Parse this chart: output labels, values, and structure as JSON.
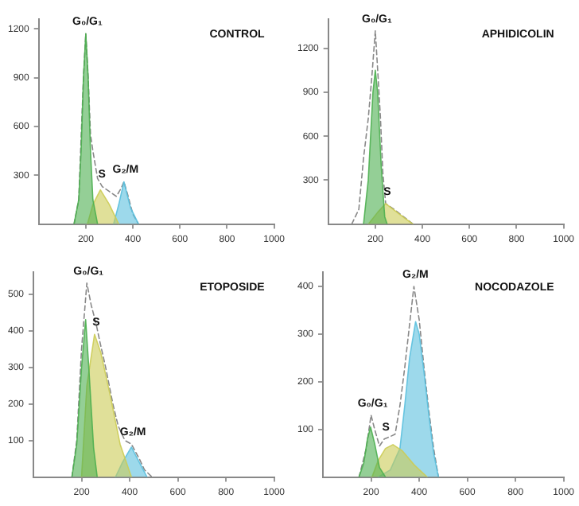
{
  "chart_data": [
    {
      "type": "area",
      "title": "CONTROL",
      "xlim": [
        0,
        1000
      ],
      "xticks": [
        200,
        400,
        600,
        800,
        1000
      ],
      "ylim": [
        0,
        1260
      ],
      "yticks": [
        300,
        600,
        900,
        1200
      ],
      "legend": false,
      "grid": false,
      "series": [
        {
          "type": "area",
          "color": "#4caf50",
          "x": [
            150,
            170,
            180,
            190,
            200,
            210,
            220,
            230,
            250
          ],
          "values": [
            0,
            150,
            450,
            900,
            1170,
            900,
            450,
            150,
            0
          ]
        },
        {
          "type": "area",
          "color": "#cccc55",
          "x": [
            207,
            230,
            262,
            300,
            340
          ],
          "values": [
            0,
            120,
            210,
            120,
            0
          ]
        },
        {
          "type": "area",
          "color": "#5bc0de",
          "x": [
            318,
            340,
            362,
            390,
            424
          ],
          "values": [
            0,
            120,
            260,
            100,
            0
          ]
        },
        {
          "type": "line",
          "line_style": "dashed",
          "color": "#888888",
          "x": [
            150,
            170,
            190,
            200,
            210,
            220,
            230,
            250,
            270,
            300,
            330,
            350,
            362,
            380,
            400,
            424
          ],
          "values": [
            0,
            150,
            900,
            1170,
            900,
            550,
            450,
            280,
            230,
            200,
            170,
            220,
            260,
            170,
            60,
            0
          ]
        }
      ],
      "annotations": [
        {
          "text": "G₀/G₁",
          "x": 200,
          "y": 1170
        },
        {
          "text": "S",
          "x": 262,
          "y": 230
        },
        {
          "text": "G₂/M",
          "x": 362,
          "y": 260
        }
      ]
    },
    {
      "type": "area",
      "title": "APHIDICOLIN",
      "xlim": [
        0,
        1000
      ],
      "xticks": [
        200,
        400,
        600,
        800,
        1000
      ],
      "ylim": [
        0,
        1400
      ],
      "yticks": [
        300,
        600,
        900,
        1200
      ],
      "legend": false,
      "grid": false,
      "series": [
        {
          "type": "area",
          "color": "#4caf50",
          "x": [
            150,
            170,
            190,
            200,
            210,
            225,
            240,
            250
          ],
          "values": [
            0,
            300,
            900,
            1050,
            900,
            400,
            50,
            0
          ]
        },
        {
          "type": "area",
          "color": "#cccc55",
          "x": [
            171,
            210,
            244,
            300,
            360
          ],
          "values": [
            0,
            80,
            140,
            70,
            0
          ]
        },
        {
          "type": "line",
          "line_style": "dashed",
          "color": "#888888",
          "x": [
            100,
            130,
            150,
            170,
            185,
            200,
            212,
            222,
            232,
            244,
            280,
            320,
            360
          ],
          "values": [
            0,
            100,
            450,
            720,
            1000,
            1320,
            1000,
            720,
            350,
            140,
            100,
            50,
            0
          ]
        }
      ],
      "annotations": [
        {
          "text": "G₀/G₁",
          "x": 200,
          "y": 1320
        },
        {
          "text": "S",
          "x": 244,
          "y": 140
        }
      ]
    },
    {
      "type": "area",
      "title": "ETOPOSIDE",
      "xlim": [
        0,
        1000
      ],
      "xticks": [
        200,
        400,
        600,
        800,
        1000
      ],
      "ylim": [
        0,
        560
      ],
      "yticks": [
        100,
        200,
        300,
        400,
        500
      ],
      "legend": false,
      "grid": false,
      "series": [
        {
          "type": "area",
          "color": "#4caf50",
          "x": [
            160,
            180,
            200,
            217,
            230,
            250,
            265
          ],
          "values": [
            0,
            90,
            300,
            430,
            300,
            80,
            0
          ]
        },
        {
          "type": "area",
          "color": "#cccc55",
          "x": [
            200,
            222,
            254,
            280,
            320,
            360,
            407
          ],
          "values": [
            0,
            250,
            390,
            340,
            220,
            90,
            0
          ]
        },
        {
          "type": "area",
          "color": "#5bc0de",
          "x": [
            341,
            370,
            407,
            440,
            472
          ],
          "values": [
            0,
            40,
            82,
            40,
            0
          ]
        },
        {
          "type": "line",
          "line_style": "dashed",
          "color": "#888888",
          "x": [
            160,
            180,
            200,
            222,
            240,
            260,
            276,
            300,
            330,
            352,
            380,
            407,
            440,
            461,
            493
          ],
          "values": [
            0,
            100,
            350,
            530,
            470,
            420,
            370,
            300,
            200,
            140,
            100,
            90,
            50,
            20,
            0
          ]
        }
      ],
      "annotations": [
        {
          "text": "G₀/G₁",
          "x": 222,
          "y": 530
        },
        {
          "text": "S",
          "x": 254,
          "y": 390
        },
        {
          "text": "G₂/M",
          "x": 407,
          "y": 90
        }
      ]
    },
    {
      "type": "area",
      "title": "NOCODAZOLE",
      "xlim": [
        0,
        1000
      ],
      "xticks": [
        200,
        400,
        600,
        800,
        1000
      ],
      "ylim": [
        0,
        430
      ],
      "yticks": [
        100,
        200,
        300,
        400
      ],
      "legend": false,
      "grid": false,
      "series": [
        {
          "type": "area",
          "color": "#4caf50",
          "x": [
            150,
            170,
            185,
            198,
            215,
            235,
            260
          ],
          "values": [
            0,
            30,
            80,
            105,
            70,
            20,
            0
          ]
        },
        {
          "type": "area",
          "color": "#cccc55",
          "x": [
            204,
            230,
            260,
            291,
            330,
            380,
            433
          ],
          "values": [
            0,
            35,
            60,
            68,
            55,
            25,
            0
          ]
        },
        {
          "type": "area",
          "color": "#5bc0de",
          "x": [
            230,
            280,
            320,
            340,
            360,
            385,
            400,
            420,
            440,
            460,
            480
          ],
          "values": [
            0,
            15,
            60,
            150,
            250,
            326,
            300,
            220,
            130,
            50,
            0
          ]
        },
        {
          "type": "line",
          "line_style": "dashed",
          "color": "#888888",
          "x": [
            150,
            180,
            200,
            215,
            235,
            255,
            280,
            300,
            320,
            340,
            360,
            378,
            400,
            420,
            440,
            460,
            480
          ],
          "values": [
            0,
            60,
            130,
            100,
            65,
            80,
            85,
            90,
            150,
            230,
            320,
            400,
            330,
            230,
            140,
            60,
            0
          ]
        }
      ],
      "annotations": [
        {
          "text": "G₀/G₁",
          "x": 200,
          "y": 130
        },
        {
          "text": "S",
          "x": 255,
          "y": 80
        },
        {
          "text": "G₂/M",
          "x": 378,
          "y": 400
        }
      ]
    }
  ]
}
